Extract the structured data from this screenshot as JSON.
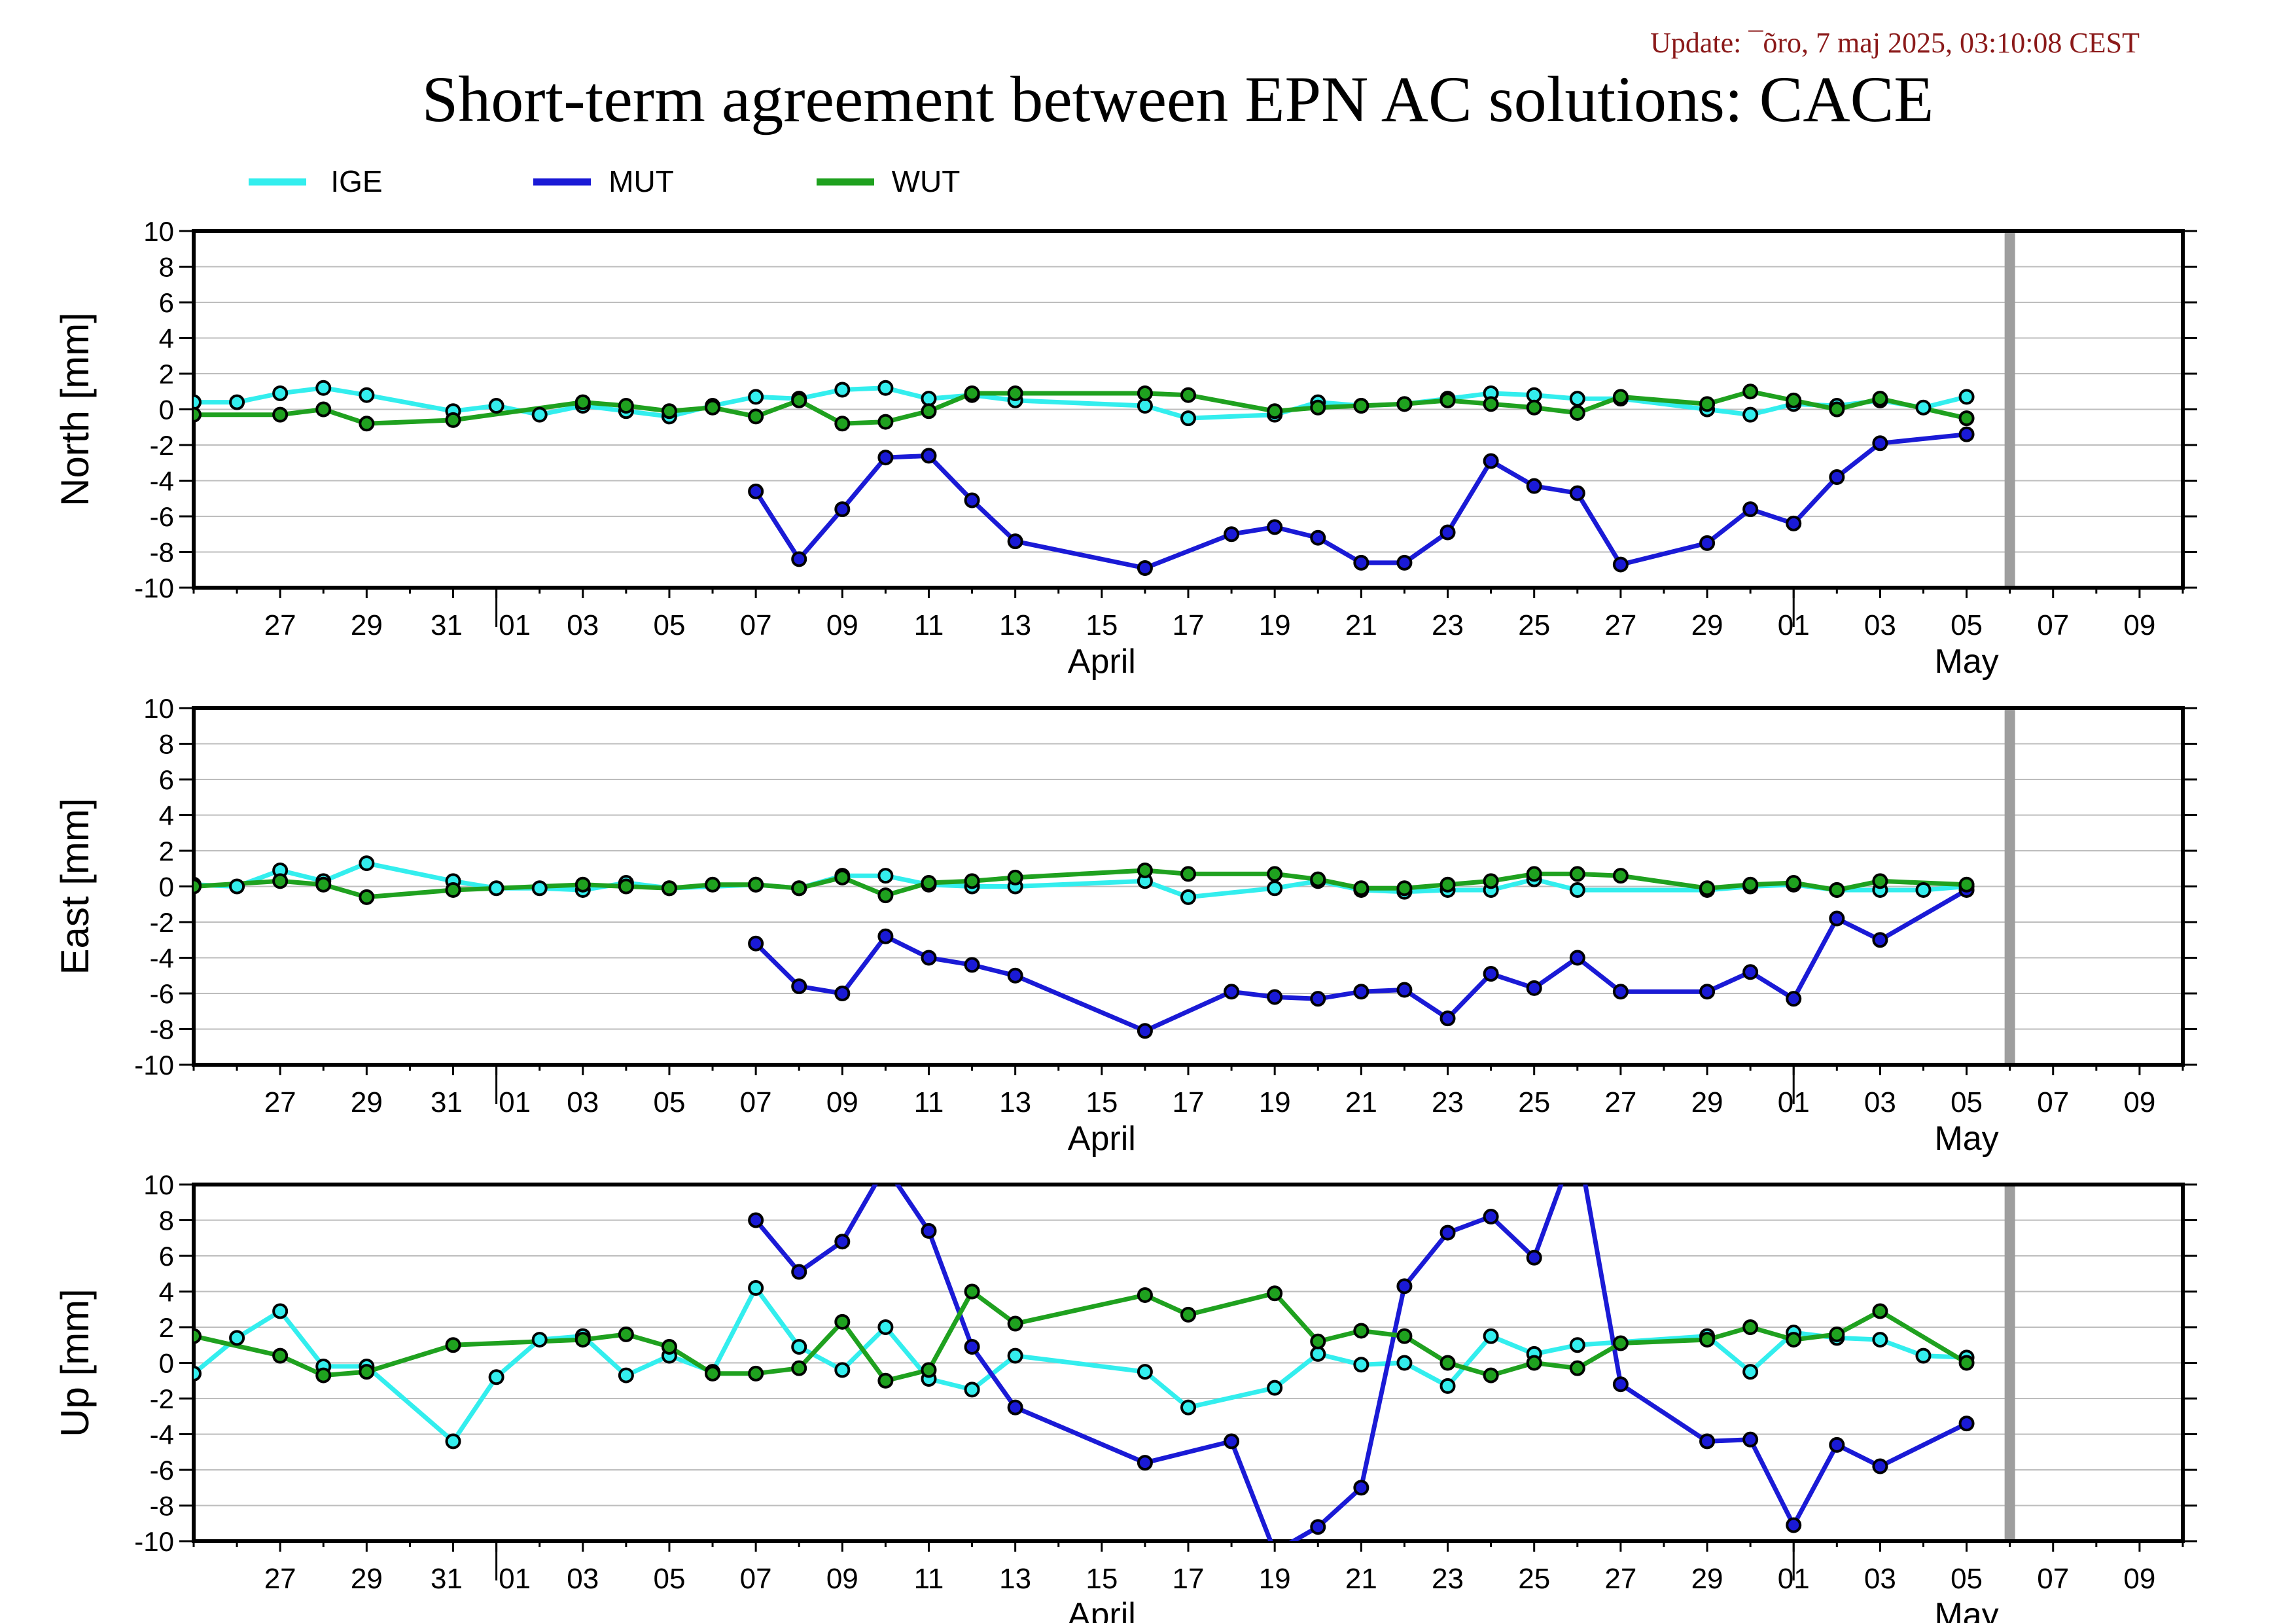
{
  "update_text": "Update: ¯õro, 7 maj 2025, 03:10:08 CEST",
  "title": "Short-term agreement between EPN AC solutions: CACE",
  "legend": [
    {
      "name": "IGE",
      "color": "#33eeee"
    },
    {
      "name": "MUT",
      "color": "#1a1ad6"
    },
    {
      "name": "WUT",
      "color": "#1fa11f"
    }
  ],
  "colors": {
    "update": "#8b1a1a",
    "frame": "#000000",
    "grid": "#bdbdbd",
    "today_bar": "#9e9e9e"
  },
  "chart_data": [
    {
      "type": "line",
      "ylabel": "North [mm]",
      "ylim": [
        -10,
        10
      ],
      "yticks": [
        10,
        8,
        6,
        4,
        2,
        0,
        -2,
        -4,
        -6,
        -8,
        -10
      ],
      "xlim": [
        "2025-03-25",
        "2025-05-10"
      ],
      "xtick_labels": [
        "27",
        "29",
        "31",
        "01",
        "03",
        "05",
        "07",
        "09",
        "11",
        "13",
        "15",
        "17",
        "19",
        "21",
        "23",
        "25",
        "27",
        "29",
        "01",
        "03",
        "05",
        "07",
        "09"
      ],
      "month_labels": [
        "April",
        "May"
      ],
      "current_date_marker": "2025-05-06",
      "grid": true,
      "series": [
        {
          "name": "IGE",
          "x": [
            "2025-03-25",
            "2025-03-26",
            "2025-03-27",
            "2025-03-28",
            "2025-03-29",
            "2025-03-31",
            "2025-04-01",
            "2025-04-02",
            "2025-04-03",
            "2025-04-04",
            "2025-04-05",
            "2025-04-06",
            "2025-04-07",
            "2025-04-08",
            "2025-04-09",
            "2025-04-10",
            "2025-04-11",
            "2025-04-12",
            "2025-04-13",
            "2025-04-16",
            "2025-04-17",
            "2025-04-19",
            "2025-04-20",
            "2025-04-21",
            "2025-04-22",
            "2025-04-23",
            "2025-04-24",
            "2025-04-25",
            "2025-04-26",
            "2025-04-27",
            "2025-04-29",
            "2025-04-30",
            "2025-05-01",
            "2025-05-02",
            "2025-05-03",
            "2025-05-04",
            "2025-05-05"
          ],
          "y": [
            0.4,
            0.4,
            0.9,
            1.2,
            0.8,
            -0.1,
            0.2,
            -0.3,
            0.2,
            -0.1,
            -0.4,
            0.2,
            0.7,
            0.6,
            1.1,
            1.2,
            0.6,
            0.8,
            0.5,
            0.2,
            -0.5,
            -0.3,
            0.4,
            0.2,
            0.3,
            0.6,
            0.9,
            0.8,
            0.6,
            0.6,
            0.0,
            -0.3,
            0.3,
            0.2,
            0.5,
            0.1,
            0.7
          ]
        },
        {
          "name": "MUT",
          "x": [
            "2025-04-07",
            "2025-04-08",
            "2025-04-09",
            "2025-04-10",
            "2025-04-11",
            "2025-04-12",
            "2025-04-13",
            "2025-04-16",
            "2025-04-18",
            "2025-04-19",
            "2025-04-20",
            "2025-04-21",
            "2025-04-22",
            "2025-04-23",
            "2025-04-24",
            "2025-04-25",
            "2025-04-26",
            "2025-04-27",
            "2025-04-29",
            "2025-04-30",
            "2025-05-01",
            "2025-05-02",
            "2025-05-03",
            "2025-05-05"
          ],
          "y": [
            -4.6,
            -8.4,
            -5.6,
            -2.7,
            -2.6,
            -5.1,
            -7.4,
            -8.9,
            -7.0,
            -6.6,
            -7.2,
            -8.6,
            -8.6,
            -6.9,
            -2.9,
            -4.3,
            -4.7,
            -8.7,
            -7.5,
            -5.6,
            -6.4,
            -3.8,
            -1.9,
            -1.4
          ]
        },
        {
          "name": "WUT",
          "x": [
            "2025-03-25",
            "2025-03-27",
            "2025-03-28",
            "2025-03-29",
            "2025-03-31",
            "2025-04-03",
            "2025-04-04",
            "2025-04-05",
            "2025-04-06",
            "2025-04-07",
            "2025-04-08",
            "2025-04-09",
            "2025-04-10",
            "2025-04-11",
            "2025-04-12",
            "2025-04-13",
            "2025-04-16",
            "2025-04-17",
            "2025-04-19",
            "2025-04-20",
            "2025-04-21",
            "2025-04-22",
            "2025-04-23",
            "2025-04-24",
            "2025-04-25",
            "2025-04-26",
            "2025-04-27",
            "2025-04-29",
            "2025-04-30",
            "2025-05-01",
            "2025-05-02",
            "2025-05-03",
            "2025-05-05"
          ],
          "y": [
            -0.3,
            -0.3,
            0.0,
            -0.8,
            -0.6,
            0.4,
            0.2,
            -0.1,
            0.1,
            -0.4,
            0.5,
            -0.8,
            -0.7,
            -0.1,
            0.9,
            0.9,
            0.9,
            0.8,
            -0.1,
            0.1,
            0.2,
            0.3,
            0.5,
            0.3,
            0.1,
            -0.2,
            0.7,
            0.3,
            1.0,
            0.5,
            0.0,
            0.6,
            -0.5
          ]
        }
      ]
    },
    {
      "type": "line",
      "ylabel": "East [mm]",
      "ylim": [
        -10,
        10
      ],
      "yticks": [
        10,
        8,
        6,
        4,
        2,
        0,
        -2,
        -4,
        -6,
        -8,
        -10
      ],
      "xlim": [
        "2025-03-25",
        "2025-05-10"
      ],
      "xtick_labels": [
        "27",
        "29",
        "31",
        "01",
        "03",
        "05",
        "07",
        "09",
        "11",
        "13",
        "15",
        "17",
        "19",
        "21",
        "23",
        "25",
        "27",
        "29",
        "01",
        "03",
        "05",
        "07",
        "09"
      ],
      "month_labels": [
        "April",
        "May"
      ],
      "current_date_marker": "2025-05-06",
      "grid": true,
      "series": [
        {
          "name": "IGE",
          "x": [
            "2025-03-25",
            "2025-03-26",
            "2025-03-27",
            "2025-03-28",
            "2025-03-29",
            "2025-03-31",
            "2025-04-01",
            "2025-04-02",
            "2025-04-03",
            "2025-04-04",
            "2025-04-05",
            "2025-04-07",
            "2025-04-08",
            "2025-04-09",
            "2025-04-10",
            "2025-04-11",
            "2025-04-12",
            "2025-04-13",
            "2025-04-16",
            "2025-04-17",
            "2025-04-19",
            "2025-04-20",
            "2025-04-21",
            "2025-04-22",
            "2025-04-23",
            "2025-04-24",
            "2025-04-25",
            "2025-04-26",
            "2025-04-29",
            "2025-04-30",
            "2025-05-01",
            "2025-05-02",
            "2025-05-03",
            "2025-05-04",
            "2025-05-05"
          ],
          "y": [
            0.1,
            0.0,
            0.9,
            0.3,
            1.3,
            0.3,
            -0.1,
            -0.1,
            -0.2,
            0.2,
            -0.1,
            0.1,
            -0.1,
            0.6,
            0.6,
            0.1,
            0.0,
            0.0,
            0.3,
            -0.6,
            -0.1,
            0.3,
            -0.2,
            -0.3,
            -0.2,
            -0.2,
            0.4,
            -0.2,
            -0.2,
            0.0,
            0.1,
            -0.2,
            -0.2,
            -0.2,
            0.0
          ]
        },
        {
          "name": "MUT",
          "x": [
            "2025-04-07",
            "2025-04-08",
            "2025-04-09",
            "2025-04-10",
            "2025-04-11",
            "2025-04-12",
            "2025-04-13",
            "2025-04-16",
            "2025-04-18",
            "2025-04-19",
            "2025-04-20",
            "2025-04-21",
            "2025-04-22",
            "2025-04-23",
            "2025-04-24",
            "2025-04-25",
            "2025-04-26",
            "2025-04-27",
            "2025-04-29",
            "2025-04-30",
            "2025-05-01",
            "2025-05-02",
            "2025-05-03",
            "2025-05-05"
          ],
          "y": [
            -3.2,
            -5.6,
            -6.0,
            -2.8,
            -4.0,
            -4.4,
            -5.0,
            -8.1,
            -5.9,
            -6.2,
            -6.3,
            -5.9,
            -5.8,
            -7.4,
            -4.9,
            -5.7,
            -4.0,
            -5.9,
            -5.9,
            -4.8,
            -6.3,
            -1.8,
            -3.0,
            -0.2
          ]
        },
        {
          "name": "WUT",
          "x": [
            "2025-03-25",
            "2025-03-27",
            "2025-03-28",
            "2025-03-29",
            "2025-03-31",
            "2025-04-03",
            "2025-04-04",
            "2025-04-05",
            "2025-04-06",
            "2025-04-07",
            "2025-04-08",
            "2025-04-09",
            "2025-04-10",
            "2025-04-11",
            "2025-04-12",
            "2025-04-13",
            "2025-04-16",
            "2025-04-17",
            "2025-04-19",
            "2025-04-20",
            "2025-04-21",
            "2025-04-22",
            "2025-04-23",
            "2025-04-24",
            "2025-04-25",
            "2025-04-26",
            "2025-04-27",
            "2025-04-29",
            "2025-04-30",
            "2025-05-01",
            "2025-05-02",
            "2025-05-03",
            "2025-05-05"
          ],
          "y": [
            0.0,
            0.3,
            0.1,
            -0.6,
            -0.2,
            0.1,
            0.0,
            -0.1,
            0.1,
            0.1,
            -0.1,
            0.5,
            -0.5,
            0.2,
            0.3,
            0.5,
            0.9,
            0.7,
            0.7,
            0.4,
            -0.1,
            -0.1,
            0.1,
            0.3,
            0.7,
            0.7,
            0.6,
            -0.1,
            0.1,
            0.2,
            -0.2,
            0.3,
            0.1
          ]
        }
      ]
    },
    {
      "type": "line",
      "ylabel": "Up [mm]",
      "ylim": [
        -10,
        10
      ],
      "yticks": [
        10,
        8,
        6,
        4,
        2,
        0,
        -2,
        -4,
        -6,
        -8,
        -10
      ],
      "xlim": [
        "2025-03-25",
        "2025-05-10"
      ],
      "xtick_labels": [
        "27",
        "29",
        "31",
        "01",
        "03",
        "05",
        "07",
        "09",
        "11",
        "13",
        "15",
        "17",
        "19",
        "21",
        "23",
        "25",
        "27",
        "29",
        "01",
        "03",
        "05",
        "07",
        "09"
      ],
      "month_labels": [
        "April",
        "May"
      ],
      "current_date_marker": "2025-05-06",
      "grid": true,
      "series": [
        {
          "name": "IGE",
          "x": [
            "2025-03-25",
            "2025-03-26",
            "2025-03-27",
            "2025-03-28",
            "2025-03-29",
            "2025-03-31",
            "2025-04-01",
            "2025-04-02",
            "2025-04-03",
            "2025-04-04",
            "2025-04-05",
            "2025-04-06",
            "2025-04-07",
            "2025-04-08",
            "2025-04-09",
            "2025-04-10",
            "2025-04-11",
            "2025-04-12",
            "2025-04-13",
            "2025-04-16",
            "2025-04-17",
            "2025-04-19",
            "2025-04-20",
            "2025-04-21",
            "2025-04-22",
            "2025-04-23",
            "2025-04-24",
            "2025-04-25",
            "2025-04-26",
            "2025-04-29",
            "2025-04-30",
            "2025-05-01",
            "2025-05-02",
            "2025-05-03",
            "2025-05-04",
            "2025-05-05"
          ],
          "y": [
            -0.6,
            1.4,
            2.9,
            -0.2,
            -0.2,
            -4.4,
            -0.8,
            1.3,
            1.5,
            -0.7,
            0.4,
            -0.5,
            4.2,
            0.9,
            -0.4,
            2.0,
            -0.9,
            -1.5,
            0.4,
            -0.5,
            -2.5,
            -1.4,
            0.5,
            -0.1,
            0.0,
            -1.3,
            1.5,
            0.5,
            1.0,
            1.5,
            -0.5,
            1.7,
            1.4,
            1.3,
            0.4,
            0.3
          ]
        },
        {
          "name": "MUT",
          "x": [
            "2025-04-07",
            "2025-04-08",
            "2025-04-09",
            "2025-04-10",
            "2025-04-11",
            "2025-04-12",
            "2025-04-13",
            "2025-04-16",
            "2025-04-18",
            "2025-04-19",
            "2025-04-20",
            "2025-04-21",
            "2025-04-22",
            "2025-04-23",
            "2025-04-24",
            "2025-04-25",
            "2025-04-26",
            "2025-04-27",
            "2025-04-29",
            "2025-04-30",
            "2025-05-01",
            "2025-05-02",
            "2025-05-03",
            "2025-05-05"
          ],
          "y": [
            8.0,
            5.1,
            6.8,
            11.0,
            7.4,
            0.9,
            -2.5,
            -5.6,
            -4.4,
            -10.6,
            -9.2,
            -7.0,
            4.3,
            7.3,
            8.2,
            5.9,
            12.5,
            -1.2,
            -4.4,
            -4.3,
            -9.1,
            -4.6,
            -5.8,
            -3.4
          ]
        },
        {
          "name": "WUT",
          "x": [
            "2025-03-25",
            "2025-03-27",
            "2025-03-28",
            "2025-03-29",
            "2025-03-31",
            "2025-04-03",
            "2025-04-04",
            "2025-04-05",
            "2025-04-06",
            "2025-04-07",
            "2025-04-08",
            "2025-04-09",
            "2025-04-10",
            "2025-04-11",
            "2025-04-12",
            "2025-04-13",
            "2025-04-16",
            "2025-04-17",
            "2025-04-19",
            "2025-04-20",
            "2025-04-21",
            "2025-04-22",
            "2025-04-23",
            "2025-04-24",
            "2025-04-25",
            "2025-04-26",
            "2025-04-27",
            "2025-04-29",
            "2025-04-30",
            "2025-05-01",
            "2025-05-02",
            "2025-05-03",
            "2025-05-05"
          ],
          "y": [
            1.5,
            0.4,
            -0.7,
            -0.5,
            1.0,
            1.3,
            1.6,
            0.9,
            -0.6,
            -0.6,
            -0.3,
            2.3,
            -1.0,
            -0.4,
            4.0,
            2.2,
            3.8,
            2.7,
            3.9,
            1.2,
            1.8,
            1.5,
            0.0,
            -0.7,
            0.0,
            -0.3,
            1.1,
            1.3,
            2.0,
            1.3,
            1.6,
            2.9,
            0.0
          ]
        }
      ]
    }
  ]
}
